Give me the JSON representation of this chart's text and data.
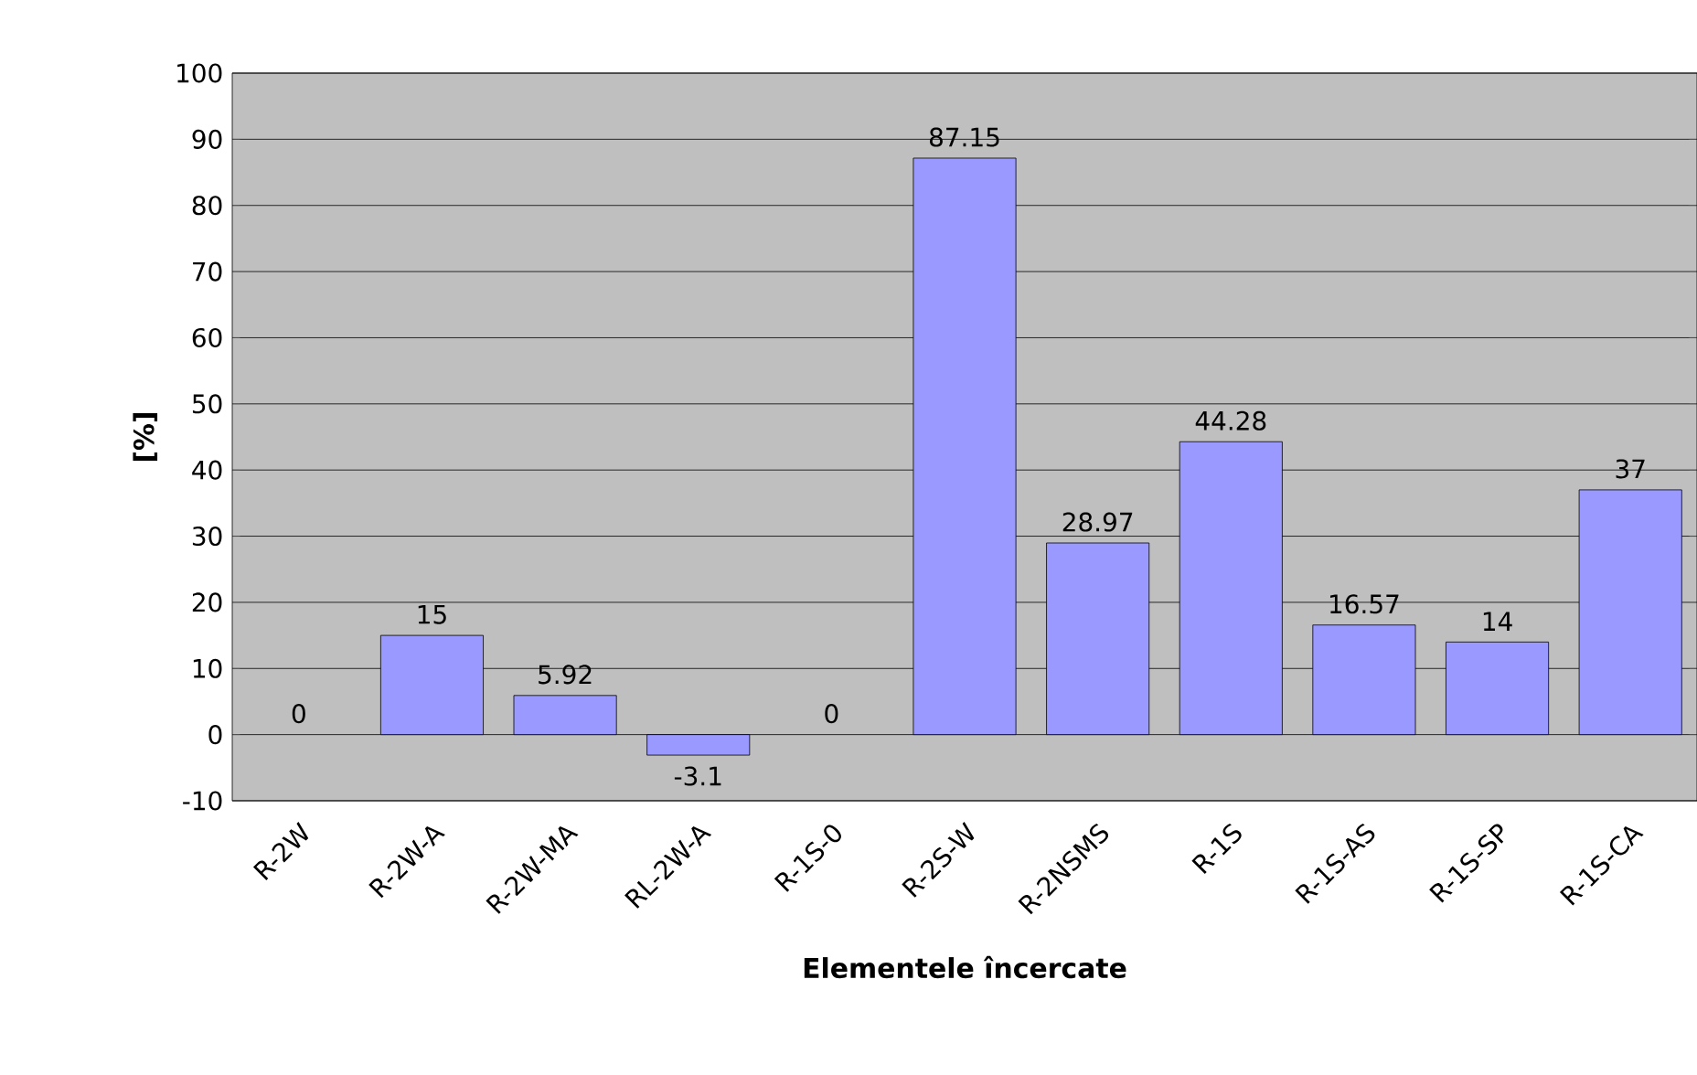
{
  "chart_data": {
    "type": "bar",
    "xlabel": "Elementele încercate",
    "ylabel": "[%]",
    "categories": [
      "R-2W",
      "R-2W-A",
      "R-2W-MA",
      "RL-2W-A",
      "R-1S-0",
      "R-2S-W",
      "R-2NSMS",
      "R-1S",
      "R-1S-AS",
      "R-1S-SP",
      "R-1S-CA"
    ],
    "values": [
      0,
      15,
      5.92,
      -3.1,
      0,
      87.15,
      28.97,
      44.28,
      16.57,
      14,
      37
    ],
    "color": "#9999ff",
    "ylim": [
      -10,
      100
    ],
    "yticks": [
      -10,
      0,
      10,
      20,
      30,
      40,
      50,
      60,
      70,
      80,
      90,
      100
    ],
    "grid": "y",
    "data_labels": true
  }
}
